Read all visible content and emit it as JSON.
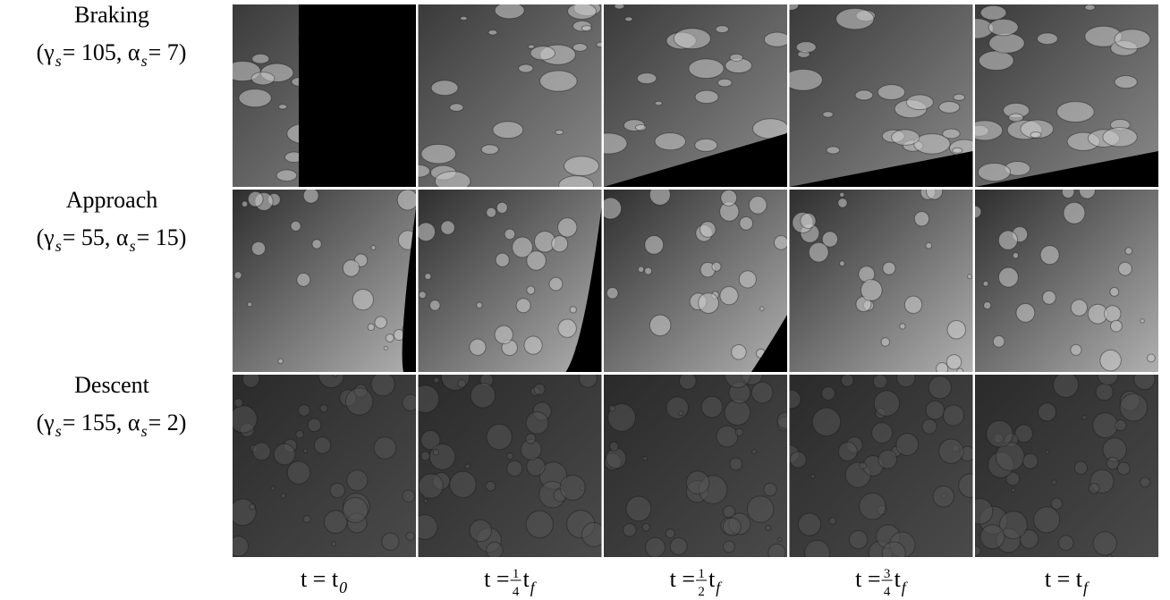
{
  "rows": [
    {
      "name": "Braking",
      "params": [
        {
          "t": "(γ"
        },
        {
          "sub": "s"
        },
        {
          "t": " = 105, α"
        },
        {
          "sub": "s"
        },
        {
          "t": " = 7)"
        }
      ]
    },
    {
      "name": "Approach",
      "params": [
        {
          "t": "(γ"
        },
        {
          "sub": "s"
        },
        {
          "t": " = 55, α"
        },
        {
          "sub": "s"
        },
        {
          "t": " = 15)"
        }
      ]
    },
    {
      "name": "Descent",
      "params": [
        {
          "t": "(γ"
        },
        {
          "sub": "s"
        },
        {
          "t": " = 155, α"
        },
        {
          "sub": "s"
        },
        {
          "t": " = 2)"
        }
      ]
    }
  ],
  "columns": [
    {
      "parts": [
        {
          "t": "t = t"
        },
        {
          "sub": "0"
        }
      ]
    },
    {
      "parts": [
        {
          "t": "t = "
        },
        {
          "num": "1",
          "den": "4"
        },
        {
          "t": "t"
        },
        {
          "sub": "f"
        }
      ]
    },
    {
      "parts": [
        {
          "t": "t = "
        },
        {
          "num": "1",
          "den": "2"
        },
        {
          "t": "t"
        },
        {
          "sub": "f"
        }
      ]
    },
    {
      "parts": [
        {
          "t": "t = "
        },
        {
          "num": "3",
          "den": "4"
        },
        {
          "t": "t"
        },
        {
          "sub": "f"
        }
      ]
    },
    {
      "parts": [
        {
          "t": "t = t"
        },
        {
          "sub": "f"
        }
      ]
    }
  ]
}
